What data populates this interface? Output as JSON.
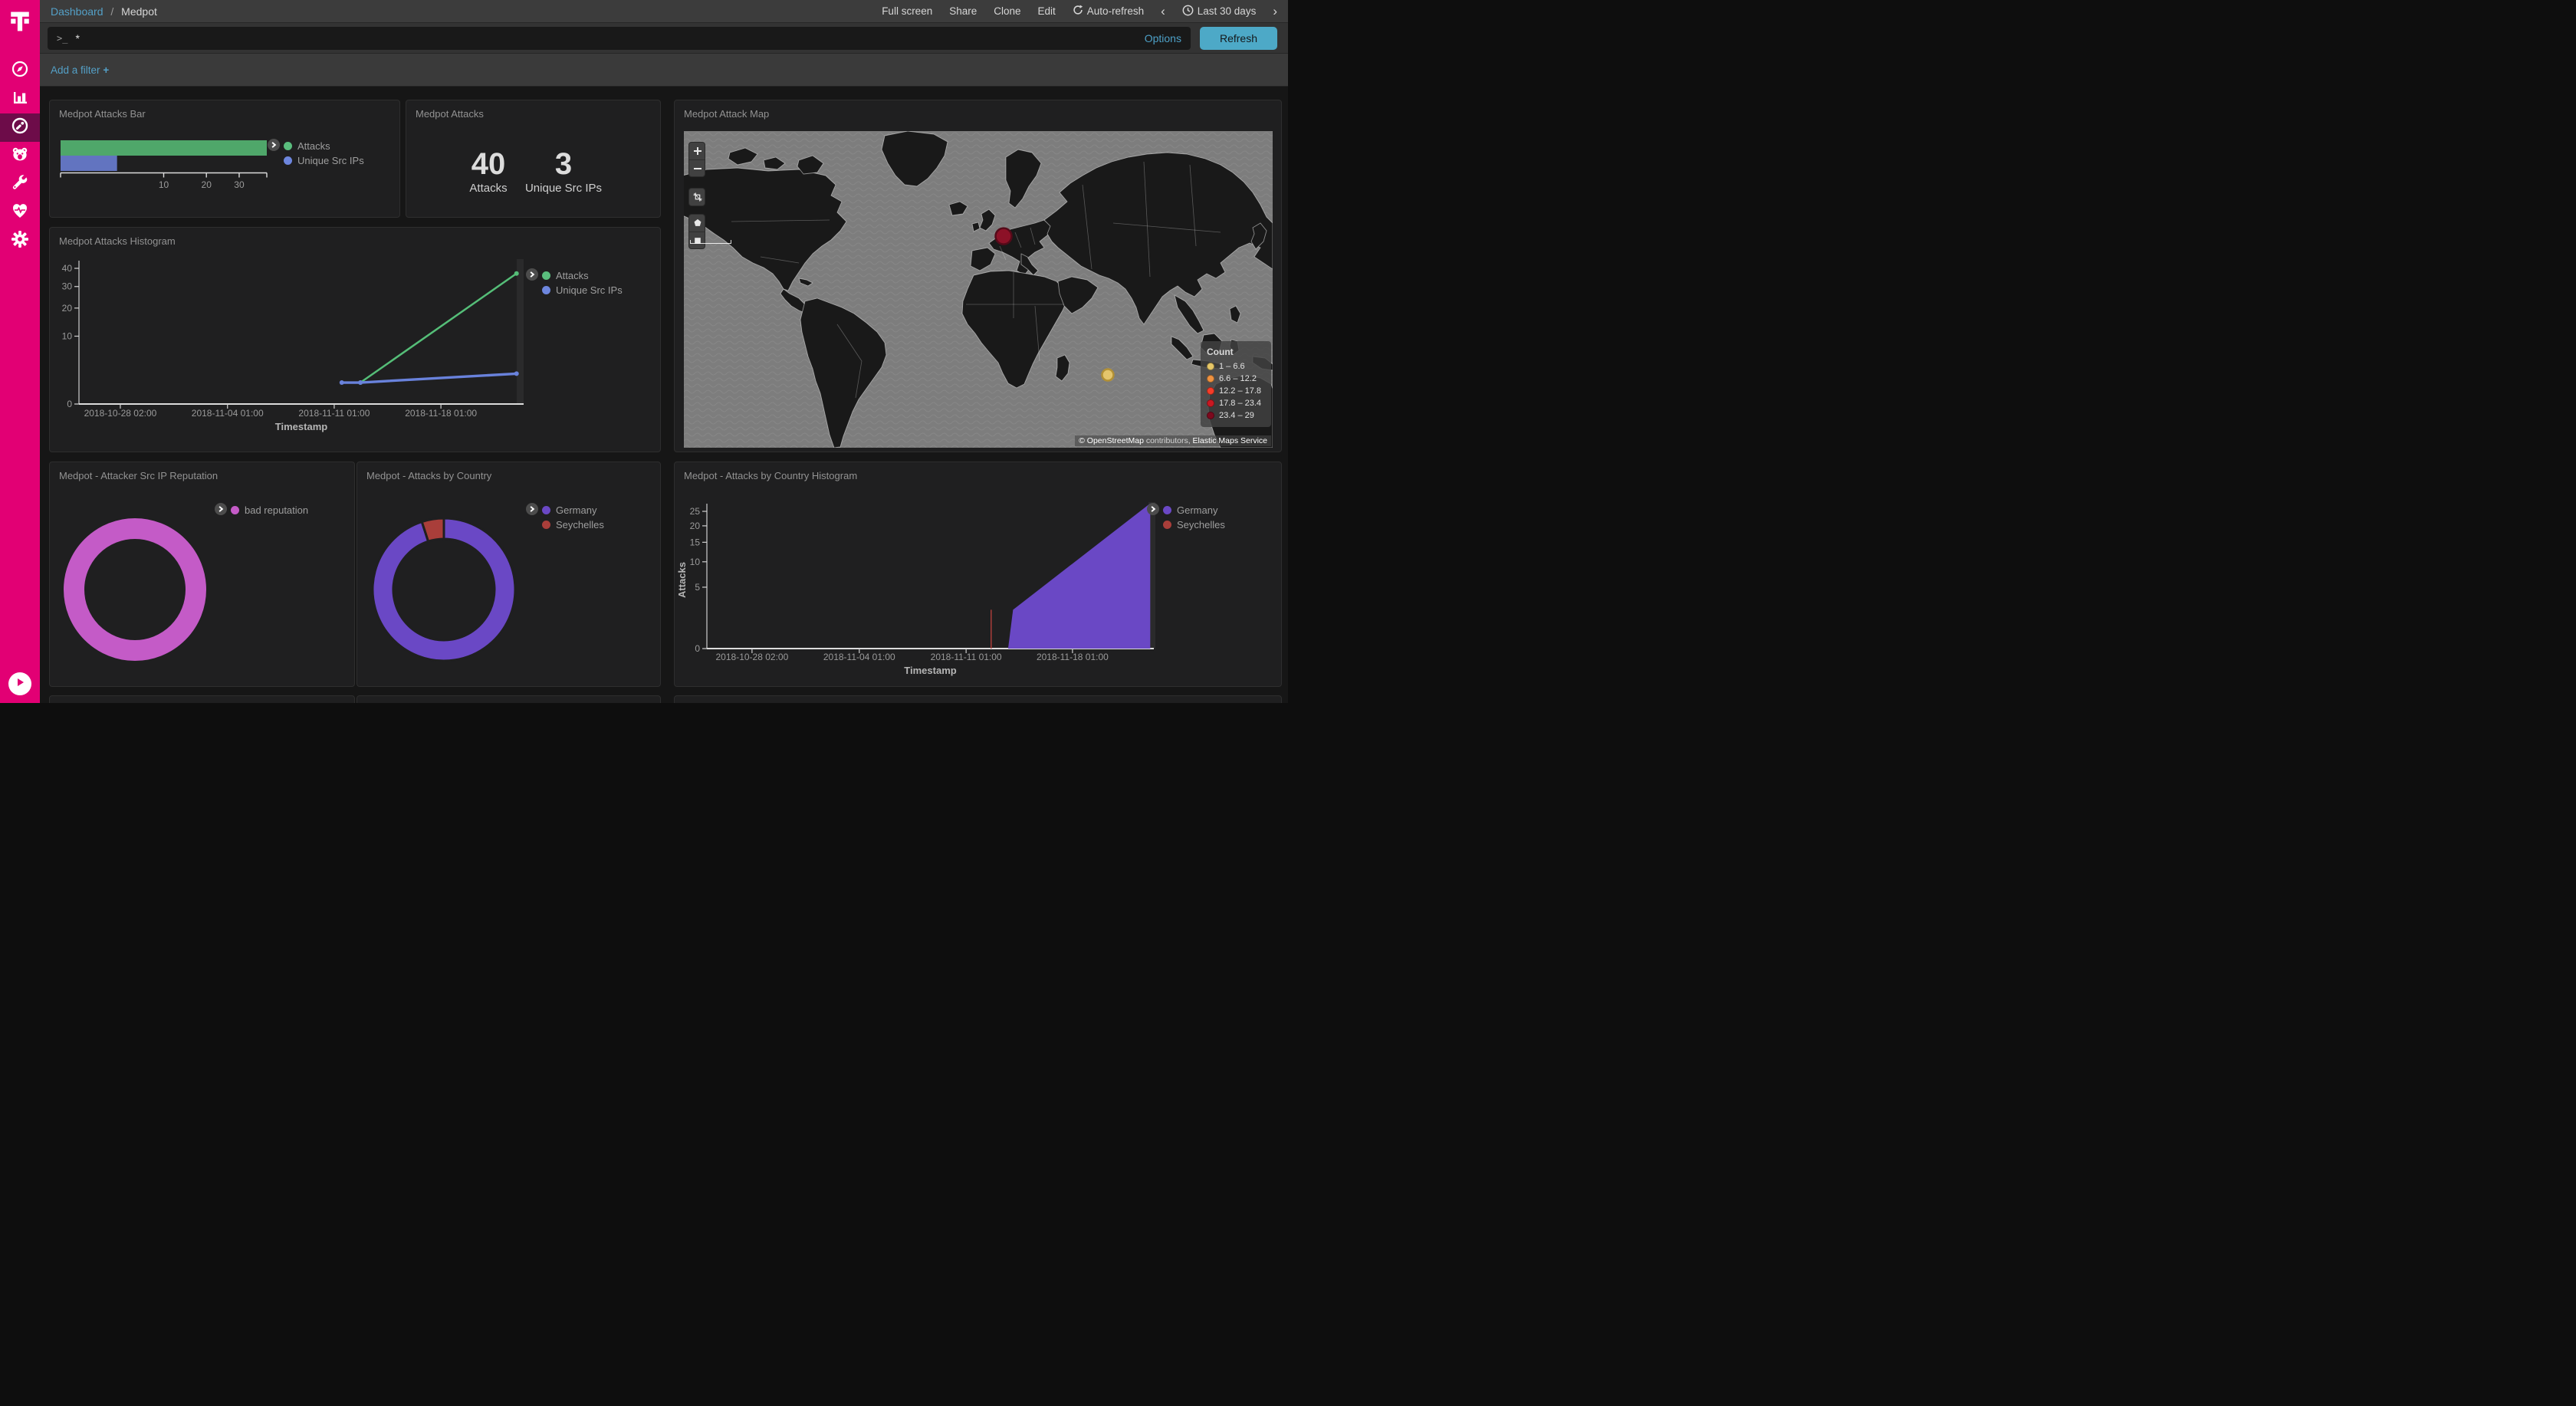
{
  "brand": {
    "name": "Telekom",
    "color": "#e20074",
    "logo_glyph": "T"
  },
  "sidebar": {
    "items": [
      {
        "id": "discover",
        "icon": "compass-icon",
        "selected": false
      },
      {
        "id": "visualize",
        "icon": "bar-chart-icon",
        "selected": false
      },
      {
        "id": "dashboard",
        "icon": "gauge-icon",
        "selected": true
      },
      {
        "id": "t-pot",
        "icon": "bear-icon",
        "selected": false
      },
      {
        "id": "dev-tools",
        "icon": "wrench-icon",
        "selected": false
      },
      {
        "id": "monitoring",
        "icon": "heartbeat-icon",
        "selected": false
      },
      {
        "id": "management",
        "icon": "gear-icon",
        "selected": false
      }
    ],
    "collapse_icon": "play-circle-icon"
  },
  "top_nav": {
    "breadcrumb": {
      "root": "Dashboard",
      "separator": "/",
      "current": "Medpot"
    },
    "actions": [
      "Full screen",
      "Share",
      "Clone",
      "Edit"
    ],
    "auto_refresh_label": "Auto-refresh",
    "time_prev": "‹",
    "time_range": "Last 30 days",
    "time_next": "›"
  },
  "query_bar": {
    "prompt": ">_",
    "value": "*",
    "options_label": "Options",
    "refresh_label": "Refresh"
  },
  "filter_bar": {
    "add_filter_label": "Add a filter",
    "plus": "+"
  },
  "chart_data": [
    {
      "panel": "Medpot Attacks Bar",
      "type": "bar",
      "orientation": "horizontal",
      "scale": "sqrt",
      "categories": [
        "Attacks",
        "Unique Src IPs"
      ],
      "values": [
        40,
        3
      ],
      "bar_colors": [
        "#4fa76a",
        "#6274c0"
      ],
      "x_ticks": [
        10,
        20,
        30
      ],
      "xlim": [
        0,
        40
      ],
      "legend": [
        {
          "label": "Attacks",
          "color": "#5abd7d"
        },
        {
          "label": "Unique Src IPs",
          "color": "#6d86de"
        }
      ]
    },
    {
      "panel": "Medpot Attacks",
      "type": "metric",
      "metrics": [
        {
          "value": "40",
          "label": "Attacks"
        },
        {
          "value": "3",
          "label": "Unique Src IPs"
        }
      ]
    },
    {
      "panel": "Medpot Attack Map",
      "type": "map",
      "legend_title": "Count",
      "legend": [
        {
          "label": "1 – 6.6",
          "color": "#e7c767"
        },
        {
          "label": "6.6 – 12.2",
          "color": "#ef9240"
        },
        {
          "label": "12.2 – 17.8",
          "color": "#f63c28"
        },
        {
          "label": "17.8 – 23.4",
          "color": "#c91822"
        },
        {
          "label": "23.4 – 29",
          "color": "#7d091e"
        }
      ],
      "points": [
        {
          "name": "Germany",
          "color": "#8c1127",
          "border": "#550a19",
          "xf": 0.543,
          "yf": 0.332,
          "r": 10.5
        },
        {
          "name": "Seychelles",
          "color": "#e4c56c",
          "border": "#b29035",
          "xf": 0.72,
          "yf": 0.77,
          "r": 7.5
        }
      ],
      "controls": [
        "zoom-in",
        "zoom-out",
        "fit-bounds",
        "draw-polygon",
        "draw-rectangle"
      ],
      "attribution": {
        "prefix": "© OpenStreetMap",
        "middle": " contributors, ",
        "suffix": "Elastic Maps Service"
      }
    },
    {
      "panel": "Medpot Attacks Histogram",
      "type": "line",
      "scale": "sqrt",
      "xlabel": "Timestamp",
      "ylim": [
        0,
        40
      ],
      "y_ticks": [
        0,
        10,
        20,
        30,
        40
      ],
      "x_ticks": [
        "2018-10-28 02:00",
        "2018-11-04 01:00",
        "2018-11-11 01:00",
        "2018-11-18 01:00"
      ],
      "x_tick_f": [
        0.093,
        0.334,
        0.574,
        0.814
      ],
      "series": [
        {
          "name": "Attacks",
          "color": "#55be78",
          "points": [
            {
              "xf": 0.633,
              "y": 1
            },
            {
              "xf": 0.984,
              "y": 37
            }
          ]
        },
        {
          "name": "Unique Src IPs",
          "color": "#6982dc",
          "points": [
            {
              "xf": 0.591,
              "y": 1
            },
            {
              "xf": 0.633,
              "y": 1
            },
            {
              "xf": 0.984,
              "y": 2
            }
          ]
        }
      ],
      "legend": [
        {
          "label": "Attacks",
          "color": "#5abd7d"
        },
        {
          "label": "Unique Src IPs",
          "color": "#6d86de"
        }
      ]
    },
    {
      "panel": "Medpot - Attacker Src IP Reputation",
      "type": "pie",
      "donut": true,
      "slices": [
        {
          "label": "bad reputation",
          "value": 40,
          "color": "#c45bc7"
        }
      ],
      "legend": [
        {
          "label": "bad reputation",
          "color": "#c45bc7"
        }
      ]
    },
    {
      "panel": "Medpot - Attacks by Country",
      "type": "pie",
      "donut": true,
      "slices": [
        {
          "label": "Germany",
          "value": 38,
          "color": "#6a48c5"
        },
        {
          "label": "Seychelles",
          "value": 2,
          "color": "#a93e3a"
        }
      ],
      "legend": [
        {
          "label": "Germany",
          "color": "#6a48c5"
        },
        {
          "label": "Seychelles",
          "color": "#a93e3a"
        }
      ]
    },
    {
      "panel": "Medpot - Attacks by Country Histogram",
      "type": "area",
      "scale": "sqrt",
      "xlabel": "Timestamp",
      "ylabel": "Attacks",
      "ylim": [
        0,
        25
      ],
      "y_ticks": [
        0,
        5,
        10,
        15,
        20,
        25
      ],
      "x_ticks": [
        "2018-10-28 02:00",
        "2018-11-04 01:00",
        "2018-11-11 01:00",
        "2018-11-18 01:00"
      ],
      "x_tick_f": [
        0.101,
        0.341,
        0.58,
        0.818
      ],
      "series": [
        {
          "name": "Germany",
          "color": "#6a48c5",
          "render": "area",
          "points": [
            {
              "xf": 0.674,
              "y": 0
            },
            {
              "xf": 0.685,
              "y": 2
            },
            {
              "xf": 0.992,
              "y": 28
            }
          ]
        },
        {
          "name": "Seychelles",
          "color": "#a93e3a",
          "render": "spike",
          "points": [
            {
              "xf": 0.636,
              "y": 2
            }
          ]
        }
      ],
      "legend": [
        {
          "label": "Germany",
          "color": "#6a48c5"
        },
        {
          "label": "Seychelles",
          "color": "#a93e3a"
        }
      ]
    }
  ]
}
